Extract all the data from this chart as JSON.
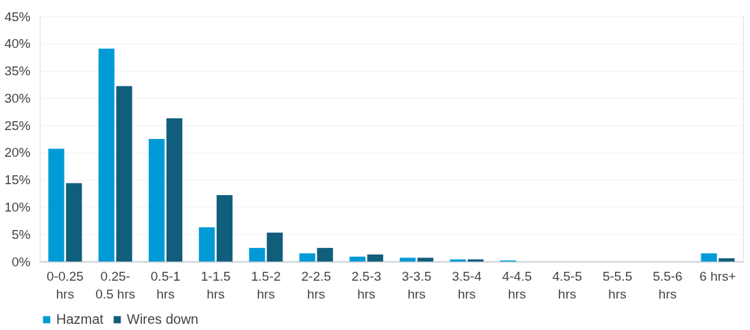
{
  "chart_data": {
    "type": "bar",
    "categories": [
      "0-0.25\nhrs",
      "0.25-\n0.5 hrs",
      "0.5-1\nhrs",
      "1-1.5\nhrs",
      "1.5-2\nhrs",
      "2-2.5\nhrs",
      "2.5-3\nhrs",
      "3-3.5\nhrs",
      "3.5-4\nhrs",
      "4-4.5\nhrs",
      "4.5-5\nhrs",
      "5-5.5\nhrs",
      "5.5-6\nhrs",
      "6 hrs+"
    ],
    "series": [
      {
        "name": "Hazmat",
        "color": "#009bd6",
        "values": [
          20.7,
          39.1,
          22.5,
          6.3,
          2.5,
          1.5,
          0.9,
          0.7,
          0.4,
          0.2,
          0,
          0,
          0,
          1.5
        ]
      },
      {
        "name": "Wires down",
        "color": "#115e7c",
        "values": [
          14.4,
          32.2,
          26.3,
          12.2,
          5.3,
          2.5,
          1.3,
          0.7,
          0.4,
          0,
          0,
          0,
          0,
          0.6
        ]
      }
    ],
    "ylim": [
      0,
      45
    ],
    "yticks": [
      {
        "value": 0,
        "label": "0%"
      },
      {
        "value": 5,
        "label": "5%"
      },
      {
        "value": 10,
        "label": "10%"
      },
      {
        "value": 15,
        "label": "15%"
      },
      {
        "value": 20,
        "label": "20%"
      },
      {
        "value": 25,
        "label": "25%"
      },
      {
        "value": 30,
        "label": "30%"
      },
      {
        "value": 35,
        "label": "35%"
      },
      {
        "value": 40,
        "label": "40%"
      },
      {
        "value": 45,
        "label": "45%"
      }
    ],
    "grid": "y",
    "legend": "bottom"
  }
}
